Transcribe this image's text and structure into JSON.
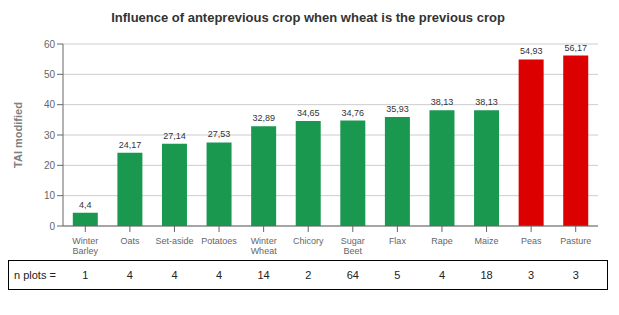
{
  "chart_data": {
    "type": "bar",
    "title": "Influence of anteprevious crop when wheat is the previous crop",
    "ylabel": "TAI modified",
    "categories": [
      "Winter Barley",
      "Oats",
      "Set-aside",
      "Potatoes",
      "Winter Wheat",
      "Chicory",
      "Sugar Beet",
      "Flax",
      "Rape",
      "Maize",
      "Peas",
      "Pasture"
    ],
    "values": [
      4.4,
      24.17,
      27.14,
      27.53,
      32.89,
      34.65,
      34.76,
      35.93,
      38.13,
      38.13,
      54.93,
      56.17
    ],
    "value_labels": [
      "4,4",
      "24,17",
      "27,14",
      "27,53",
      "32,89",
      "34,65",
      "34,76",
      "35,93",
      "38,13",
      "38,13",
      "54,93",
      "56,17"
    ],
    "colors": [
      "#1a9850",
      "#1a9850",
      "#1a9850",
      "#1a9850",
      "#1a9850",
      "#1a9850",
      "#1a9850",
      "#1a9850",
      "#1a9850",
      "#1a9850",
      "#dd0000",
      "#dd0000"
    ],
    "data_labels": true,
    "ylim": [
      0,
      60
    ],
    "yticks": [
      0,
      10,
      20,
      30,
      40,
      50,
      60
    ],
    "grid": true,
    "n_plots_label": "n plots =",
    "n_plots": [
      1,
      4,
      4,
      4,
      14,
      2,
      64,
      5,
      4,
      18,
      3,
      3
    ]
  }
}
